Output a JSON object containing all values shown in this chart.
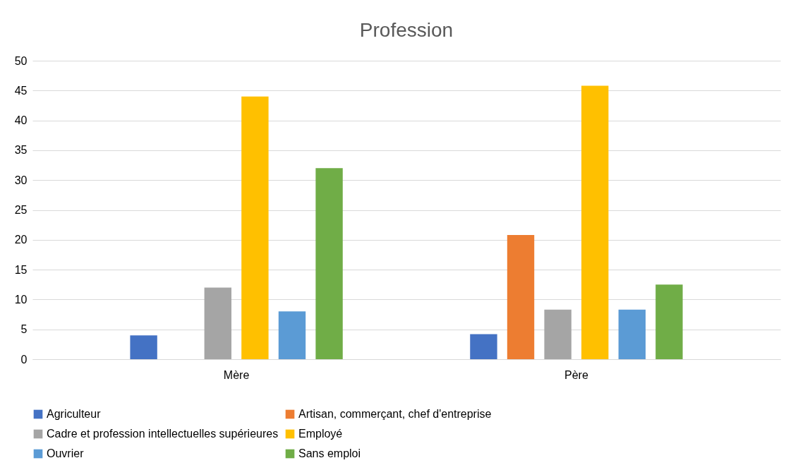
{
  "chart_data": {
    "type": "bar",
    "title": "Profession",
    "categories": [
      "Mère",
      "Père"
    ],
    "series": [
      {
        "name": "Agriculteur",
        "color": "#4472c4",
        "values": [
          4,
          4.2
        ]
      },
      {
        "name": "Artisan, commerçant, chef d'entreprise",
        "color": "#ed7d31",
        "values": [
          0,
          20.8
        ]
      },
      {
        "name": "Cadre et profession intellectuelles supérieures",
        "color": "#a5a5a5",
        "values": [
          12,
          8.3
        ]
      },
      {
        "name": "Employé",
        "color": "#ffc000",
        "values": [
          44,
          45.8
        ]
      },
      {
        "name": "Ouvrier",
        "color": "#5b9bd5",
        "values": [
          8,
          8.3
        ]
      },
      {
        "name": "Sans emploi",
        "color": "#70ad47",
        "values": [
          32,
          12.5
        ]
      }
    ],
    "ylim": [
      0,
      50
    ],
    "yticks": [
      0,
      5,
      10,
      15,
      20,
      25,
      30,
      35,
      40,
      45,
      50
    ],
    "grid": "y",
    "legend": "bottom"
  }
}
